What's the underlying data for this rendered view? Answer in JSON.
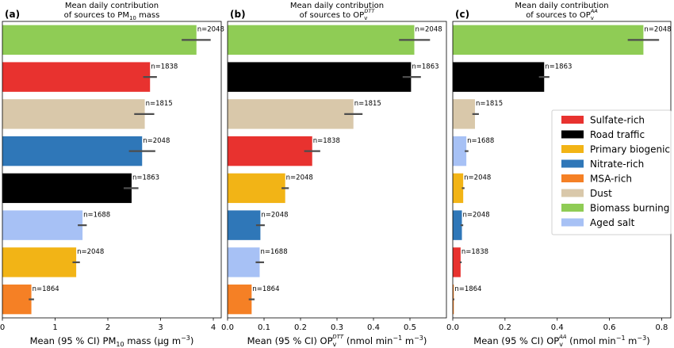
{
  "figure": {
    "legend": {
      "placement": "right",
      "items": [
        {
          "label": "Sulfate-rich",
          "color": "#e8322f"
        },
        {
          "label": "Road traffic",
          "color": "#000000"
        },
        {
          "label": "Primary biogenic",
          "color": "#f2b416"
        },
        {
          "label": "Nitrate-rich",
          "color": "#2f77b8"
        },
        {
          "label": "MSA-rich",
          "color": "#f58025"
        },
        {
          "label": "Dust",
          "color": "#d9c8aa"
        },
        {
          "label": "Biomass burning",
          "color": "#8fcc55"
        },
        {
          "label": "Aged salt",
          "color": "#a7c1f5"
        }
      ]
    }
  },
  "chart_data": [
    {
      "type": "bar",
      "orientation": "horizontal",
      "panel_label": "(a)",
      "title_line1": "Mean daily contribution",
      "title_line2": "of sources to PM",
      "title_sub": "10",
      "title_suffix": " mass",
      "xlabel_pre": "Mean (95 % CI) PM",
      "xlabel_sub": "10",
      "xlabel_post": " mass (µg  m",
      "xlabel_sup": "−3",
      "xlabel_end": ")",
      "xlim": [
        0,
        4.15
      ],
      "xticks": [
        0,
        1,
        2,
        3,
        4
      ],
      "xtick_labels": [
        "0",
        "1",
        "2",
        "3",
        "4"
      ],
      "bars": [
        {
          "source": "Biomass burning",
          "value": 3.68,
          "ci": [
            3.4,
            3.95
          ],
          "n_label": "n=2048",
          "color": "#8fcc55"
        },
        {
          "source": "Sulfate-rich",
          "value": 2.8,
          "ci": [
            2.67,
            2.93
          ],
          "n_label": "n=1838",
          "color": "#e8322f"
        },
        {
          "source": "Dust",
          "value": 2.7,
          "ci": [
            2.5,
            2.88
          ],
          "n_label": "n=1815",
          "color": "#d9c8aa"
        },
        {
          "source": "Nitrate-rich",
          "value": 2.65,
          "ci": [
            2.4,
            2.9
          ],
          "n_label": "n=2048",
          "color": "#2f77b8"
        },
        {
          "source": "Road traffic",
          "value": 2.45,
          "ci": [
            2.3,
            2.58
          ],
          "n_label": "n=1863",
          "color": "#000000"
        },
        {
          "source": "Aged salt",
          "value": 1.52,
          "ci": [
            1.43,
            1.6
          ],
          "n_label": "n=1688",
          "color": "#a7c1f5"
        },
        {
          "source": "Primary biogenic",
          "value": 1.4,
          "ci": [
            1.33,
            1.47
          ],
          "n_label": "n=2048",
          "color": "#f2b416"
        },
        {
          "source": "MSA-rich",
          "value": 0.55,
          "ci": [
            0.5,
            0.6
          ],
          "n_label": "n=1864",
          "color": "#f58025"
        }
      ]
    },
    {
      "type": "bar",
      "orientation": "horizontal",
      "panel_label": "(b)",
      "title_line1": "Mean daily contribution",
      "title_line2": "of sources to OP",
      "title_sub": "v",
      "title_sup": "DTT",
      "xlabel_pre": "Mean (95 % CI) OP",
      "xlabel_sub": "v",
      "xlabel_sup1": "DTT",
      "xlabel_post": " (nmol  min",
      "xlabel_sup2": "−1",
      "xlabel_mid": "  m",
      "xlabel_sup3": "−3",
      "xlabel_end": ")",
      "xlim": [
        0,
        0.6
      ],
      "xticks": [
        0,
        0.1,
        0.2,
        0.3,
        0.4,
        0.5
      ],
      "xtick_labels": [
        "0.0",
        "0.1",
        "0.2",
        "0.3",
        "0.4",
        "0.5"
      ],
      "bars": [
        {
          "source": "Biomass burning",
          "value": 0.512,
          "ci": [
            0.47,
            0.555
          ],
          "n_label": "n=2048",
          "color": "#8fcc55"
        },
        {
          "source": "Road traffic",
          "value": 0.503,
          "ci": [
            0.48,
            0.53
          ],
          "n_label": "n=1863",
          "color": "#000000"
        },
        {
          "source": "Dust",
          "value": 0.345,
          "ci": [
            0.32,
            0.37
          ],
          "n_label": "n=1815",
          "color": "#d9c8aa"
        },
        {
          "source": "Sulfate-rich",
          "value": 0.232,
          "ci": [
            0.21,
            0.254
          ],
          "n_label": "n=1838",
          "color": "#e8322f"
        },
        {
          "source": "Primary biogenic",
          "value": 0.158,
          "ci": [
            0.148,
            0.168
          ],
          "n_label": "n=2048",
          "color": "#f2b416"
        },
        {
          "source": "Nitrate-rich",
          "value": 0.09,
          "ci": [
            0.078,
            0.102
          ],
          "n_label": "n=2048",
          "color": "#2f77b8"
        },
        {
          "source": "Aged salt",
          "value": 0.088,
          "ci": [
            0.077,
            0.1
          ],
          "n_label": "n=1688",
          "color": "#a7c1f5"
        },
        {
          "source": "MSA-rich",
          "value": 0.066,
          "ci": [
            0.058,
            0.074
          ],
          "n_label": "n=1864",
          "color": "#f58025"
        }
      ]
    },
    {
      "type": "bar",
      "orientation": "horizontal",
      "panel_label": "(c)",
      "title_line1": "Mean daily contribution",
      "title_line2": "of sources to OP",
      "title_sub": "v",
      "title_sup": "AA",
      "xlabel_pre": "Mean (95 % CI) OP",
      "xlabel_sub": "v",
      "xlabel_sup1": "AA",
      "xlabel_post": " (nmol  min",
      "xlabel_sup2": "−1",
      "xlabel_mid": "  m",
      "xlabel_sup3": "−3",
      "xlabel_end": ")",
      "xlim": [
        0,
        0.835
      ],
      "xticks": [
        0,
        0.2,
        0.4,
        0.6,
        0.8
      ],
      "xtick_labels": [
        "0.0",
        "0.2",
        "0.4",
        "0.6",
        "0.8"
      ],
      "bars": [
        {
          "source": "Biomass burning",
          "value": 0.73,
          "ci": [
            0.67,
            0.79
          ],
          "n_label": "n=2048",
          "color": "#8fcc55"
        },
        {
          "source": "Road traffic",
          "value": 0.35,
          "ci": [
            0.33,
            0.37
          ],
          "n_label": "n=1863",
          "color": "#000000"
        },
        {
          "source": "Dust",
          "value": 0.085,
          "ci": [
            0.075,
            0.1
          ],
          "n_label": "n=1815",
          "color": "#d9c8aa"
        },
        {
          "source": "Aged salt",
          "value": 0.052,
          "ci": [
            0.046,
            0.06
          ],
          "n_label": "n=1688",
          "color": "#a7c1f5"
        },
        {
          "source": "Primary biogenic",
          "value": 0.04,
          "ci": [
            0.035,
            0.045
          ],
          "n_label": "n=2048",
          "color": "#f2b416"
        },
        {
          "source": "Nitrate-rich",
          "value": 0.035,
          "ci": [
            0.03,
            0.04
          ],
          "n_label": "n=2048",
          "color": "#2f77b8"
        },
        {
          "source": "Sulfate-rich",
          "value": 0.03,
          "ci": [
            0.027,
            0.034
          ],
          "n_label": "n=1838",
          "color": "#e8322f"
        },
        {
          "source": "MSA-rich",
          "value": 0.004,
          "ci": [
            0.002,
            0.006
          ],
          "n_label": "n=1864",
          "color": "#f58025"
        }
      ]
    }
  ]
}
